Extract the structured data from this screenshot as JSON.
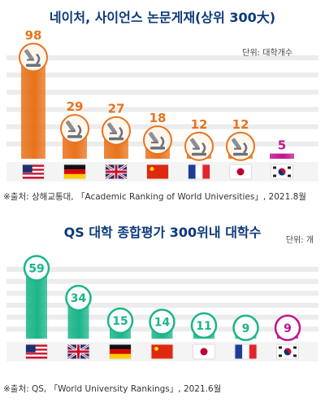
{
  "chart_data": [
    {
      "type": "bar",
      "title": "네이처, 사이언스 논문게재(상위 300大)",
      "unit": "단위: 대학개수",
      "categories": [
        "US",
        "Germany",
        "UK",
        "China",
        "France",
        "Japan",
        "Korea"
      ],
      "values": [
        98,
        29,
        27,
        18,
        12,
        12,
        5
      ],
      "value_labels": [
        "98",
        "29",
        "27",
        "18",
        "12",
        "12",
        "5"
      ],
      "ylim": [
        0,
        100
      ],
      "bar_color": "#e8731c",
      "highlight_color": "#c0168c",
      "source": "※출처: 상해교통대, 「Academic Ranking of World Universities」, 2021.8월",
      "grid": true
    },
    {
      "type": "bar",
      "title": "QS 대학 종합평가 300위내 대학수",
      "unit": "단위: 개",
      "categories": [
        "US",
        "UK",
        "Germany",
        "China",
        "Japan",
        "France",
        "Korea"
      ],
      "values": [
        59,
        34,
        15,
        14,
        11,
        9,
        9
      ],
      "value_labels": [
        "59",
        "34",
        "15",
        "14",
        "11",
        "9",
        "9"
      ],
      "ylim": [
        0,
        60
      ],
      "bar_color": "#1bb58a",
      "highlight_color": "#c0168c",
      "source": "※출처: QS, 「World University Rankings」, 2021.6월",
      "grid": true
    }
  ]
}
